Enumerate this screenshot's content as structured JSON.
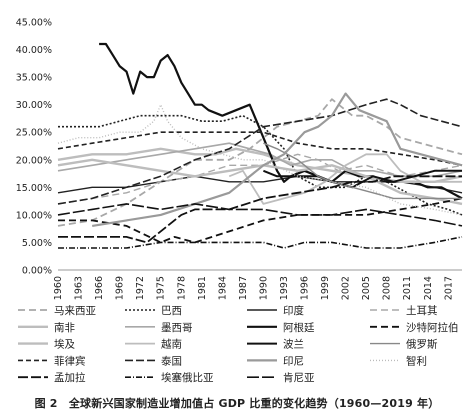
{
  "caption": "图 2　全球新兴国家制造业增加值占 GDP 比重的变化趋势（1960—2019 年）",
  "chart_data": {
    "type": "line",
    "title": "",
    "xlabel": "",
    "ylabel": "",
    "ylim": [
      0,
      45
    ],
    "xlim": [
      1960,
      2019
    ],
    "yticks": [
      "0.00%",
      "5.00%",
      "10.00%",
      "15.00%",
      "20.00%",
      "25.00%",
      "30.00%",
      "35.00%",
      "40.00%",
      "45.00%"
    ],
    "xticks": [
      1960,
      1963,
      1966,
      1969,
      1972,
      1975,
      1978,
      1981,
      1984,
      1987,
      1990,
      1993,
      1996,
      1999,
      2002,
      2005,
      2008,
      2011,
      2014,
      2017
    ],
    "grid": false,
    "legend_position": "bottom",
    "series": [
      {
        "name": "马来西亚",
        "color": "#a8a8a8",
        "width": 1.8,
        "dash": "7,4",
        "x": [
          1960,
          1965,
          1970,
          1975,
          1980,
          1985,
          1988,
          1992,
          1995,
          1998,
          2000,
          2003,
          2005,
          2008,
          2010,
          2013,
          2016,
          2019
        ],
        "y": [
          8,
          9,
          12,
          16,
          20,
          20,
          22,
          26,
          27,
          28,
          31,
          28,
          28,
          26,
          24,
          23,
          22,
          21
        ]
      },
      {
        "name": "巴西",
        "color": "#222222",
        "width": 1.6,
        "dash": "2,2",
        "x": [
          1960,
          1963,
          1966,
          1969,
          1972,
          1975,
          1978,
          1981,
          1984,
          1987,
          1990,
          1993,
          1995,
          1998,
          2002,
          2005,
          2008,
          2011,
          2014,
          2017,
          2019
        ],
        "y": [
          26,
          26,
          26,
          27,
          28,
          28,
          28,
          27,
          27,
          28,
          26,
          22,
          17,
          15,
          15,
          17,
          16,
          14,
          12,
          11,
          10
        ]
      },
      {
        "name": "印度",
        "color": "#222222",
        "width": 1.4,
        "dash": "",
        "x": [
          1960,
          1965,
          1970,
          1975,
          1980,
          1985,
          1990,
          1995,
          2000,
          2005,
          2010,
          2015,
          2019
        ],
        "y": [
          14,
          15,
          15,
          16,
          17,
          16,
          16,
          17,
          16,
          16,
          16,
          15,
          14
        ]
      },
      {
        "name": "土耳其",
        "color": "#a8a8a8",
        "width": 1.4,
        "dash": "7,4",
        "x": [
          1960,
          1965,
          1970,
          1975,
          1980,
          1985,
          1990,
          1995,
          1998,
          2001,
          2005,
          2010,
          2015,
          2019
        ],
        "y": [
          12,
          13,
          14,
          16,
          17,
          19,
          19,
          21,
          20,
          18,
          19,
          17,
          18,
          19
        ]
      },
      {
        "name": "南非",
        "color": "#bdbdbd",
        "width": 2.4,
        "dash": "",
        "x": [
          1960,
          1965,
          1970,
          1975,
          1980,
          1983,
          1986,
          1990,
          1995,
          2000,
          2005,
          2010,
          2015,
          2019
        ],
        "y": [
          20,
          21,
          21,
          22,
          21,
          21,
          22,
          21,
          19,
          18,
          17,
          14,
          13,
          12
        ]
      },
      {
        "name": "墨西哥",
        "color": "#a8a8a8",
        "width": 1.6,
        "dash": "",
        "x": [
          1960,
          1965,
          1970,
          1975,
          1980,
          1985,
          1988,
          1991,
          1994,
          1997,
          2000,
          2003,
          2006,
          2010,
          2015,
          2019
        ],
        "y": [
          18,
          19,
          20,
          21,
          22,
          23,
          22,
          21,
          19,
          20,
          20,
          18,
          18,
          17,
          17,
          18
        ]
      },
      {
        "name": "阿根廷",
        "color": "#111111",
        "width": 2.2,
        "dash": "",
        "x": [
          1966,
          1967,
          1968,
          1969,
          1970,
          1971,
          1972,
          1973,
          1974,
          1975,
          1976,
          1977,
          1978,
          1979,
          1980,
          1981,
          1982,
          1984,
          1986,
          1988,
          1989,
          1990,
          1992,
          1993,
          1994,
          1996,
          1998,
          2000,
          2002,
          2004,
          2006,
          2008,
          2010,
          2012,
          2014,
          2016,
          2019
        ],
        "y": [
          41,
          41,
          39,
          37,
          36,
          32,
          36,
          35,
          35,
          38,
          39,
          37,
          34,
          32,
          30,
          30,
          29,
          28,
          29,
          30,
          27,
          24,
          18,
          16,
          17,
          18,
          17,
          16,
          18,
          17,
          17,
          16,
          16,
          16,
          15,
          15,
          13
        ]
      },
      {
        "name": "沙特阿拉伯",
        "color": "#111111",
        "width": 1.8,
        "dash": "7,4",
        "x": [
          1960,
          1965,
          1970,
          1975,
          1977,
          1980,
          1985,
          1990,
          1995,
          2000,
          2005,
          2010,
          2015,
          2019
        ],
        "y": [
          9,
          9,
          8,
          5,
          6,
          5,
          7,
          9,
          10,
          10,
          10,
          11,
          12,
          13
        ]
      },
      {
        "name": "埃及",
        "color": "#bdbdbd",
        "width": 2.4,
        "dash": "",
        "x": [
          1960,
          1965,
          1970,
          1975,
          1980,
          1985,
          1990,
          1995,
          2000,
          2005,
          2010,
          2015,
          2019
        ],
        "y": [
          19,
          20,
          19,
          18,
          17,
          18,
          19,
          18,
          19,
          17,
          16,
          16,
          17
        ]
      },
      {
        "name": "越南",
        "color": "#bdbdbd",
        "width": 1.8,
        "dash": "",
        "x": [
          1985,
          1987,
          1990,
          1993,
          1996,
          1999,
          2002,
          2005,
          2008,
          2010,
          2013,
          2016,
          2019
        ],
        "y": [
          17,
          18,
          12,
          13,
          14,
          16,
          19,
          21,
          21,
          18,
          16,
          16,
          16
        ]
      },
      {
        "name": "波兰",
        "color": "#111111",
        "width": 2.0,
        "dash": "",
        "x": [
          1990,
          1992,
          1995,
          1998,
          2000,
          2003,
          2006,
          2009,
          2012,
          2015,
          2019
        ],
        "y": [
          18,
          17,
          17,
          17,
          16,
          15,
          17,
          16,
          17,
          18,
          18
        ]
      },
      {
        "name": "俄罗斯",
        "color": "#888888",
        "width": 1.4,
        "dash": "",
        "x": [
          1990,
          1992,
          1995,
          1998,
          2000,
          2003,
          2006,
          2009,
          2012,
          2015,
          2019
        ],
        "y": [
          23,
          22,
          20,
          17,
          16,
          15,
          14,
          13,
          13,
          13,
          13
        ]
      },
      {
        "name": "菲律宾",
        "color": "#222222",
        "width": 1.6,
        "dash": "5,3",
        "x": [
          1960,
          1965,
          1970,
          1975,
          1980,
          1985,
          1990,
          1995,
          2000,
          2005,
          2010,
          2015,
          2019
        ],
        "y": [
          22,
          23,
          24,
          25,
          25,
          25,
          25,
          23,
          22,
          22,
          21,
          20,
          19
        ]
      },
      {
        "name": "泰国",
        "color": "#222222",
        "width": 1.6,
        "dash": "8,3",
        "x": [
          1960,
          1965,
          1970,
          1975,
          1980,
          1985,
          1990,
          1995,
          2000,
          2005,
          2008,
          2010,
          2013,
          2016,
          2019
        ],
        "y": [
          12,
          13,
          15,
          17,
          20,
          22,
          26,
          27,
          28,
          30,
          31,
          30,
          28,
          27,
          26
        ]
      },
      {
        "name": "印尼",
        "color": "#9a9a9a",
        "width": 2.2,
        "dash": "",
        "x": [
          1965,
          1970,
          1975,
          1980,
          1985,
          1990,
          1993,
          1996,
          1998,
          2000,
          2001,
          2002,
          2004,
          2006,
          2008,
          2010,
          2013,
          2016,
          2019
        ],
        "y": [
          8,
          9,
          10,
          12,
          14,
          19,
          21,
          25,
          26,
          28,
          30,
          32,
          29,
          28,
          27,
          22,
          21,
          20,
          19
        ]
      },
      {
        "name": "智利",
        "color": "#bbbbbb",
        "width": 1.4,
        "dash": "1,2",
        "x": [
          1960,
          1963,
          1966,
          1969,
          1972,
          1974,
          1975,
          1976,
          1978,
          1981,
          1984,
          1987,
          1990,
          1995,
          2000,
          2005,
          2010,
          2015,
          2019
        ],
        "y": [
          23,
          24,
          24,
          25,
          25,
          27,
          30,
          27,
          24,
          22,
          21,
          20,
          20,
          17,
          16,
          15,
          12,
          11,
          10
        ]
      },
      {
        "name": "孟加拉",
        "color": "#111111",
        "width": 1.8,
        "dash": "10,3",
        "x": [
          1960,
          1965,
          1970,
          1973,
          1976,
          1978,
          1980,
          1985,
          1990,
          1995,
          2000,
          2003,
          2006,
          2009,
          2012,
          2015,
          2019
        ],
        "y": [
          6,
          6,
          6,
          5,
          8,
          10,
          11,
          11,
          13,
          14,
          15,
          16,
          16,
          17,
          17,
          17,
          17
        ]
      },
      {
        "name": "埃塞俄比亚",
        "color": "#111111",
        "width": 1.6,
        "dash": "6,2,1,2",
        "x": [
          1960,
          1965,
          1970,
          1975,
          1980,
          1985,
          1990,
          1993,
          1996,
          2000,
          2005,
          2010,
          2015,
          2019
        ],
        "y": [
          4,
          4,
          4,
          5,
          5,
          5,
          5,
          4,
          5,
          5,
          4,
          4,
          5,
          6
        ]
      },
      {
        "name": "肯尼亚",
        "color": "#111111",
        "width": 1.6,
        "dash": "12,3",
        "x": [
          1960,
          1965,
          1970,
          1975,
          1980,
          1985,
          1990,
          1995,
          2000,
          2005,
          2010,
          2015,
          2019
        ],
        "y": [
          10,
          11,
          12,
          11,
          12,
          11,
          11,
          10,
          10,
          11,
          10,
          9,
          8
        ]
      }
    ]
  }
}
